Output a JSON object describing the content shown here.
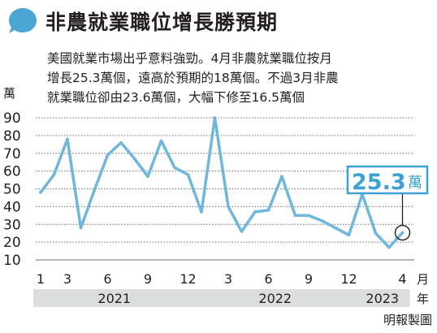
{
  "header": {
    "title": "非農就業職位增長勝預期"
  },
  "description": {
    "line1": "美國就業市場出乎意料強勁。4月非農就業職位按月",
    "line2": "增長25.3萬個，遠高於預期的18萬個。不過3月非農",
    "line3": "就業職位卻由23.6萬個，大幅下修至16.5萬個"
  },
  "credit": "明報製圖",
  "colors": {
    "line": "#6fb7dc",
    "accent": "#3aa3d4",
    "band": "#dcdddd",
    "grid": "#6d6e71",
    "icon": "#4ba6d6"
  },
  "icon": "speech-bubble-icon",
  "chart_data": {
    "type": "line",
    "x": [
      "2021-01",
      "2021-02",
      "2021-03",
      "2021-04",
      "2021-05",
      "2021-06",
      "2021-07",
      "2021-08",
      "2021-09",
      "2021-10",
      "2021-11",
      "2021-12",
      "2022-01",
      "2022-02",
      "2022-03",
      "2022-04",
      "2022-05",
      "2022-06",
      "2022-07",
      "2022-08",
      "2022-09",
      "2022-10",
      "2022-11",
      "2022-12",
      "2023-01",
      "2023-02",
      "2023-03",
      "2023-04"
    ],
    "series": [
      {
        "values": [
          48,
          58,
          78,
          28,
          49,
          69,
          76,
          67,
          57,
          77,
          62,
          58,
          37,
          90,
          40,
          26,
          37,
          38,
          57,
          35,
          35,
          32,
          28,
          24,
          47,
          25,
          17,
          25.3
        ]
      }
    ],
    "ylim": [
      10,
      90
    ],
    "yticks": [
      10,
      20,
      30,
      40,
      50,
      60,
      70,
      80,
      90
    ],
    "y_unit": "萬",
    "x_ticks": [
      {
        "label": "1",
        "index": 0
      },
      {
        "label": "3",
        "index": 2
      },
      {
        "label": "6",
        "index": 5
      },
      {
        "label": "9",
        "index": 8
      },
      {
        "label": "12",
        "index": 11
      },
      {
        "label": "3",
        "index": 14
      },
      {
        "label": "6",
        "index": 17
      },
      {
        "label": "9",
        "index": 20
      },
      {
        "label": "12",
        "index": 23
      },
      {
        "label": "4",
        "index": 27
      }
    ],
    "x_unit": "月",
    "year_unit": "年",
    "years": [
      {
        "label": "2021",
        "from": 0,
        "to": 11
      },
      {
        "label": "2022",
        "from": 12,
        "to": 23
      },
      {
        "label": "2023",
        "from": 24,
        "to": 27
      }
    ],
    "grid": true,
    "highlight": {
      "index": 27,
      "value_label": "25.3",
      "unit": "萬"
    }
  }
}
